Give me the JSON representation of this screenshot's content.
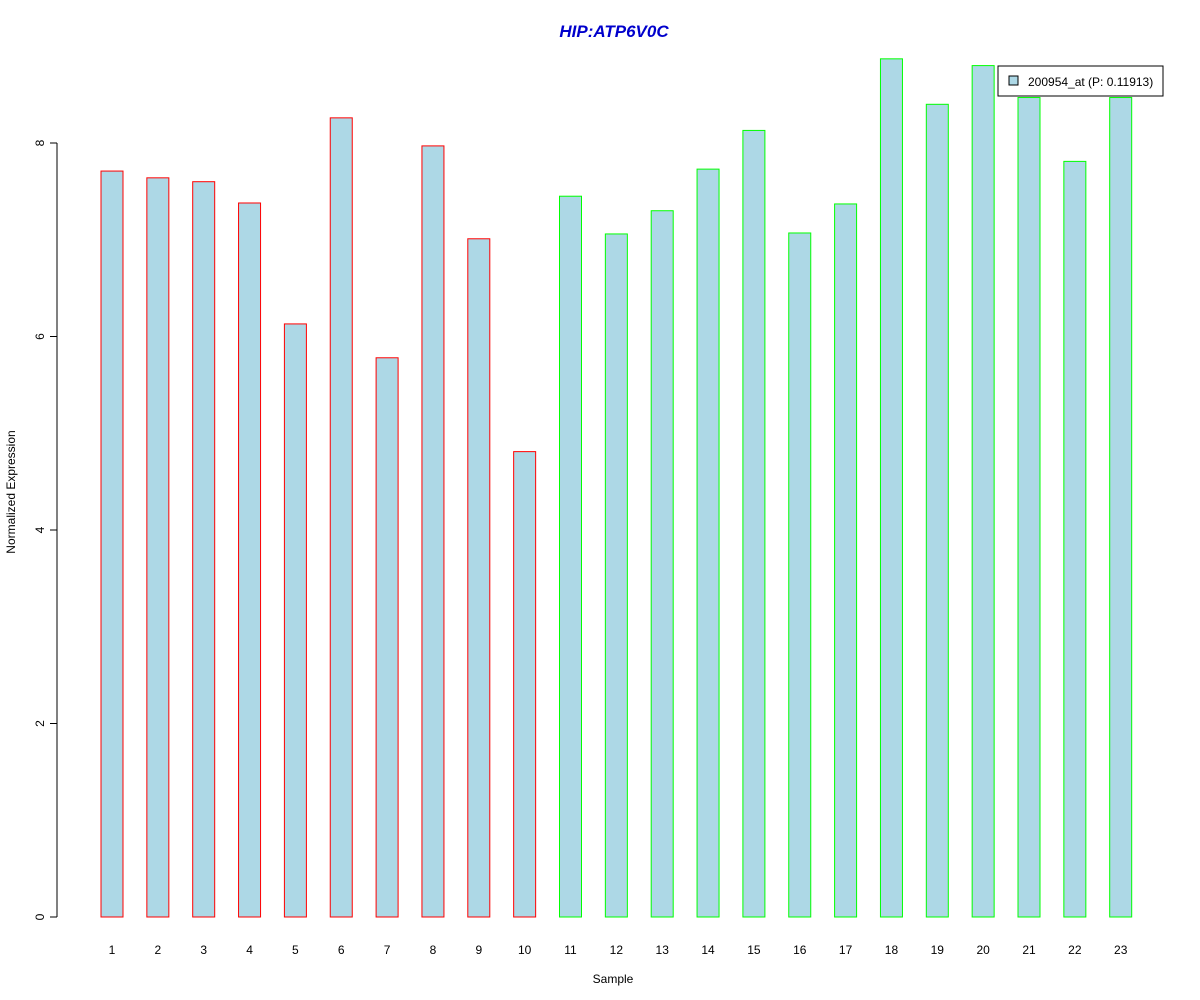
{
  "chart_data": {
    "type": "bar",
    "title": "HIP:ATP6V0C",
    "xlabel": "Sample",
    "ylabel": "Normalized Expression",
    "categories": [
      "1",
      "2",
      "3",
      "4",
      "5",
      "6",
      "7",
      "8",
      "9",
      "10",
      "11",
      "12",
      "13",
      "14",
      "15",
      "16",
      "17",
      "18",
      "19",
      "20",
      "21",
      "22",
      "23"
    ],
    "series": [
      {
        "name": "200954_at (P: 0.11913)",
        "values": [
          7.71,
          7.64,
          7.6,
          7.38,
          6.13,
          8.26,
          5.78,
          7.97,
          7.01,
          4.81,
          7.45,
          7.06,
          7.3,
          7.73,
          8.13,
          7.07,
          7.37,
          8.87,
          8.4,
          8.8,
          8.47,
          7.81,
          8.47
        ]
      }
    ],
    "ylim": [
      0,
      8.9
    ],
    "yticks": [
      0,
      2,
      4,
      6,
      8
    ],
    "grid": false,
    "legend_position": "top-right",
    "bar_fill_color": "#add8e6",
    "group_border_colors": [
      "#ff0000",
      "#ff0000",
      "#ff0000",
      "#ff0000",
      "#ff0000",
      "#ff0000",
      "#ff0000",
      "#ff0000",
      "#ff0000",
      "#ff0000",
      "#00ff00",
      "#00ff00",
      "#00ff00",
      "#00ff00",
      "#00ff00",
      "#00ff00",
      "#00ff00",
      "#00ff00",
      "#00ff00",
      "#00ff00",
      "#00ff00",
      "#00ff00",
      "#00ff00"
    ],
    "title_color": "#0000cc",
    "axis_color": "#000000"
  }
}
